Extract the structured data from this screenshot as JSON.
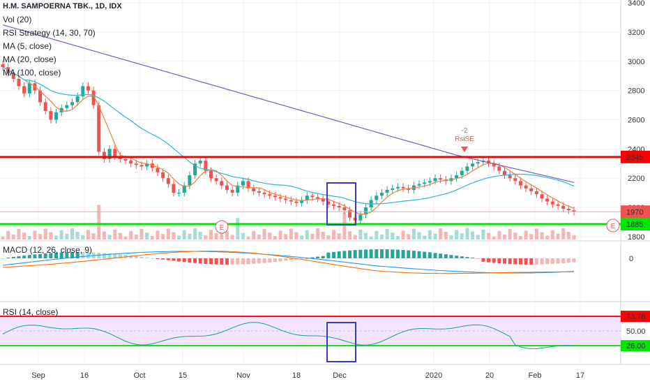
{
  "header": {
    "symbol": "H.M. SAMPOERNA TBK., 1D, IDX",
    "indicators": [
      "Vol (20)",
      "RSI Strategy (14, 30, 70)",
      "MA (5, close)",
      "MA (20, close)",
      "MA (100, close)"
    ]
  },
  "macd_label": "MACD (12, 26, close, 9)",
  "rsi_label": "RSI (14, close)",
  "colors": {
    "up": "#26a69a",
    "down": "#ef5350",
    "ma5": "#f57c3a",
    "ma20": "#2fb5d6",
    "ma100": "#7e57c2",
    "support": "#00e600",
    "resistance": "#ff0000",
    "box": "#3b3bb8",
    "rsi_fill": "#f3e5ff"
  },
  "chart_data": {
    "type": "candlestick",
    "price_axis": {
      "ticks": [
        "3400",
        "3200",
        "3000",
        "2800",
        "2600",
        "2400",
        "2200",
        "2000",
        "1800"
      ],
      "range": [
        1780,
        3420
      ]
    },
    "x_ticks": [
      "Sep",
      "16",
      "Oct",
      "15",
      "Nov",
      "18",
      "Dec",
      "2020",
      "20",
      "Feb",
      "17"
    ],
    "levels": [
      {
        "label": "2345",
        "value": 2345,
        "color": "#ff0000"
      },
      {
        "label": "1885",
        "value": 1885,
        "color": "#00e600"
      }
    ],
    "last_price": {
      "label": "1970",
      "value": 1970
    },
    "signal": {
      "label": "-2",
      "sublabel": "RsiSE",
      "x": "mid-Jan",
      "price": 2320
    },
    "earnings_markers": [
      "E",
      "E"
    ],
    "macd": {
      "zero_label": "0"
    },
    "rsi": {
      "labels": [
        "73.76",
        "50.00",
        "26.00"
      ],
      "upper": 73.76,
      "lower": 26.0,
      "mid": 50.0
    },
    "closes": [
      2960,
      2920,
      2880,
      2830,
      2780,
      2850,
      2800,
      2720,
      2660,
      2600,
      2650,
      2680,
      2700,
      2720,
      2760,
      2830,
      2800,
      2700,
      2380,
      2330,
      2400,
      2350,
      2330,
      2320,
      2300,
      2290,
      2280,
      2300,
      2270,
      2240,
      2200,
      2160,
      2100,
      2100,
      2150,
      2220,
      2300,
      2320,
      2250,
      2200,
      2180,
      2150,
      2120,
      2100,
      2150,
      2180,
      2130,
      2110,
      2100,
      2090,
      2080,
      2070,
      2060,
      2050,
      2040,
      2030,
      2050,
      2080,
      2070,
      2060,
      2040,
      2020,
      2010,
      2000,
      1980,
      1930,
      1910,
      1950,
      2000,
      2050,
      2080,
      2100,
      2120,
      2130,
      2140,
      2130,
      2120,
      2150,
      2160,
      2170,
      2180,
      2200,
      2190,
      2180,
      2200,
      2220,
      2250,
      2280,
      2300,
      2310,
      2320,
      2300,
      2280,
      2250,
      2220,
      2200,
      2180,
      2150,
      2130,
      2110,
      2090,
      2060,
      2040,
      2020,
      2010,
      1990,
      1980,
      1970
    ]
  }
}
